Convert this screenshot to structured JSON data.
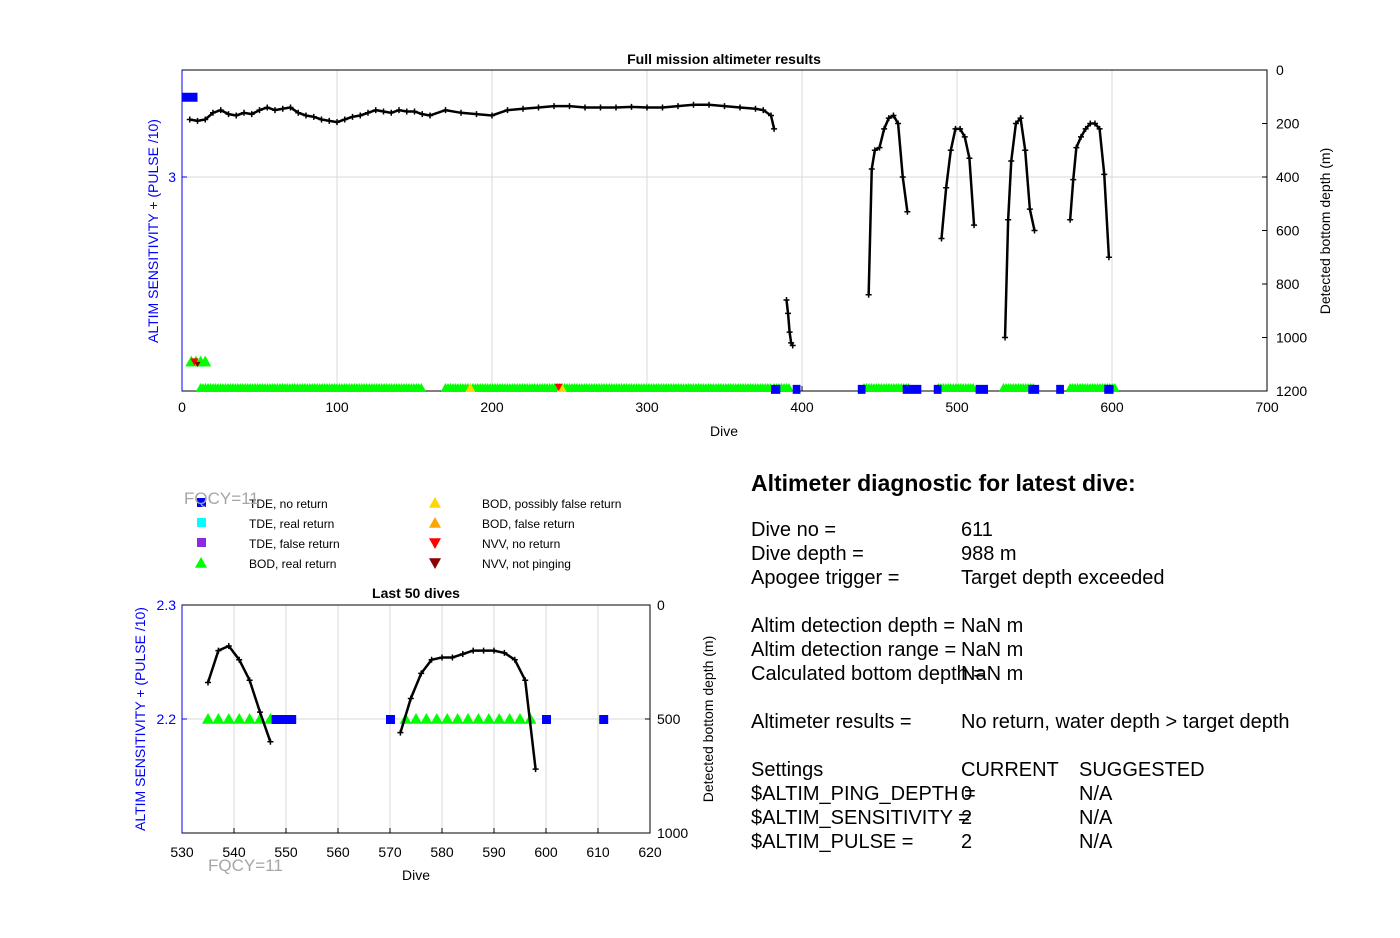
{
  "colors": {
    "axis": "#000000",
    "grid": "#d9d9d9",
    "left_axis": "#0000ff",
    "tde_no_return": "#0000ff",
    "tde_real_return": "#00ffff",
    "tde_false_return": "#8a2be2",
    "bod_real_return": "#00ff00",
    "bod_possibly_false": "#ffd700",
    "bod_false": "#ffa500",
    "nvv_no_return": "#ff0000",
    "nvv_not_pinging": "#8b0000",
    "depth_line": "#000000",
    "fqcy": "#a6a6a6"
  },
  "chart_data": [
    {
      "type": "line",
      "title": "Full mission altimeter results",
      "xlabel": "Dive",
      "ylabel": "ALTIM SENSITIVITY + (PULSE /10)",
      "y2label": "Detected bottom depth (m)",
      "xlim": [
        0,
        700
      ],
      "xticks": [
        "0",
        "100",
        "200",
        "300",
        "400",
        "500",
        "600",
        "700"
      ],
      "yticks_left": [
        "3"
      ],
      "yticks_right": [
        "0",
        "200",
        "400",
        "600",
        "800",
        "1000",
        "1200"
      ],
      "ylim_right": [
        0,
        1200
      ],
      "grid": true,
      "depth_segments": [
        {
          "x": [
            5,
            10,
            15,
            20,
            25,
            30,
            35,
            40,
            45,
            50,
            55,
            60,
            65,
            70,
            75,
            80,
            85,
            90,
            95,
            100,
            105,
            110,
            115,
            120,
            125,
            130,
            135,
            140,
            145,
            150,
            155,
            160,
            170,
            180,
            190,
            200,
            210,
            220,
            230,
            240,
            250,
            260,
            270,
            280,
            290,
            300,
            310,
            320,
            330,
            340,
            350,
            360,
            370,
            375,
            380,
            382
          ],
          "y": [
            185,
            190,
            185,
            160,
            150,
            165,
            170,
            160,
            165,
            150,
            140,
            150,
            145,
            140,
            160,
            170,
            175,
            185,
            190,
            195,
            185,
            175,
            170,
            160,
            150,
            155,
            160,
            150,
            155,
            155,
            165,
            170,
            150,
            160,
            165,
            170,
            150,
            145,
            140,
            135,
            135,
            140,
            140,
            140,
            138,
            140,
            140,
            135,
            130,
            130,
            135,
            140,
            145,
            150,
            170,
            220
          ]
        },
        {
          "x": [
            390,
            391,
            392,
            393,
            394
          ],
          "y": [
            860,
            910,
            980,
            1020,
            1030
          ]
        },
        {
          "x": [
            443,
            445,
            447,
            450,
            453,
            456,
            459,
            462,
            465,
            468
          ],
          "y": [
            840,
            370,
            300,
            290,
            220,
            180,
            170,
            200,
            400,
            530
          ]
        },
        {
          "x": [
            490,
            493,
            496,
            499,
            502,
            505,
            508,
            511
          ],
          "y": [
            630,
            440,
            300,
            220,
            220,
            250,
            330,
            580
          ]
        },
        {
          "x": [
            531,
            533,
            535,
            538,
            541,
            544,
            547,
            550
          ],
          "y": [
            1000,
            560,
            340,
            200,
            180,
            300,
            520,
            600
          ]
        },
        {
          "x": [
            573,
            575,
            577,
            580,
            583,
            586,
            589,
            592,
            595,
            598
          ],
          "y": [
            560,
            410,
            290,
            250,
            220,
            200,
            200,
            220,
            390,
            700
          ]
        }
      ],
      "bod_real_return_ranges": [
        [
          12,
          155
        ],
        [
          170,
          380
        ],
        [
          382,
          393
        ],
        [
          440,
          470
        ],
        [
          488,
          512
        ],
        [
          530,
          550
        ],
        [
          573,
          603
        ]
      ],
      "bod_real_return_extra": [
        [
          6,
          1090
        ],
        [
          9,
          1090
        ],
        [
          12,
          1090
        ],
        [
          15,
          1090
        ]
      ],
      "bod_possibly_false_x": [
        186,
        245
      ],
      "nvv_no_return_points": [
        [
          8,
          1090
        ],
        [
          243,
          1185
        ]
      ],
      "nvv_not_pinging_points": [
        [
          10,
          1100
        ]
      ],
      "tde_no_return_bars": [
        [
          0,
          10,
          100
        ],
        [
          380,
          386,
          1192
        ],
        [
          394,
          399,
          1192
        ],
        [
          436,
          441,
          1192
        ],
        [
          465,
          477,
          1192
        ],
        [
          485,
          490,
          1192
        ],
        [
          512,
          520,
          1192
        ],
        [
          546,
          553,
          1192
        ],
        [
          564,
          569,
          1192
        ],
        [
          595,
          601,
          1192
        ]
      ]
    },
    {
      "type": "line",
      "title": "Last 50 dives",
      "xlabel": "Dive",
      "ylabel": "ALTIM SENSITIVITY + (PULSE /10)",
      "y2label": "Detected bottom depth (m)",
      "xlim": [
        530,
        620
      ],
      "xticks": [
        "530",
        "540",
        "550",
        "560",
        "570",
        "580",
        "590",
        "600",
        "610",
        "620"
      ],
      "yticks_left": [
        "2.3",
        "2.2"
      ],
      "ylim_left": [
        2.1,
        2.3
      ],
      "yticks_right": [
        "0",
        "500",
        "1000"
      ],
      "ylim_right": [
        0,
        1000
      ],
      "grid": true,
      "depth_segments": [
        {
          "x": [
            535,
            537,
            539,
            541,
            543,
            545,
            547
          ],
          "y": [
            340,
            200,
            180,
            240,
            330,
            470,
            600
          ]
        },
        {
          "x": [
            572,
            574,
            576,
            578,
            580,
            582,
            584,
            586,
            588,
            590,
            592,
            594,
            596,
            598
          ],
          "y": [
            560,
            410,
            300,
            240,
            230,
            230,
            215,
            200,
            200,
            200,
            210,
            240,
            330,
            720
          ]
        }
      ],
      "bod_real_return_x": [
        535,
        537,
        539,
        541,
        543,
        545,
        547,
        573,
        575,
        577,
        579,
        581,
        583,
        585,
        587,
        589,
        591,
        593,
        595,
        597
      ],
      "bod_real_return_y": 2.2,
      "tde_no_return_x": [
        548,
        549,
        550,
        551,
        570,
        600,
        611
      ],
      "tde_no_return_y": 2.2
    }
  ],
  "fqcy_label": "FQCY=11",
  "legend": [
    {
      "label": "TDE, no return",
      "color": "#0000ff",
      "marker": "square"
    },
    {
      "label": "TDE, real return",
      "color": "#00ffff",
      "marker": "square"
    },
    {
      "label": "TDE, false return",
      "color": "#8a2be2",
      "marker": "square"
    },
    {
      "label": "BOD, real return",
      "color": "#00ff00",
      "marker": "triangle-up"
    },
    {
      "label": "BOD, possibly false return",
      "color": "#ffd700",
      "marker": "triangle-up"
    },
    {
      "label": "BOD, false return",
      "color": "#ffa500",
      "marker": "triangle-up"
    },
    {
      "label": "NVV, no return",
      "color": "#ff0000",
      "marker": "triangle-down"
    },
    {
      "label": "NVV, not pinging",
      "color": "#8b0000",
      "marker": "triangle-down"
    }
  ],
  "diagnostic": {
    "title": "Altimeter diagnostic for latest dive:",
    "dive_no_label": "Dive no =",
    "dive_no": "611",
    "dive_depth_label": "Dive depth =",
    "dive_depth": "988 m",
    "apogee_label": "Apogee trigger =",
    "apogee": "Target depth exceeded",
    "det_depth_label": "Altim detection depth =",
    "det_depth": "NaN m",
    "det_range_label": "Altim detection range =",
    "det_range": "NaN m",
    "calc_depth_label": "Calculated bottom depth =",
    "calc_depth": "NaN m",
    "results_label": "Altimeter results =",
    "results": "No return, water depth > target depth",
    "settings_label": "Settings",
    "current_label": "CURRENT",
    "suggested_label": "SUGGESTED",
    "ping_depth_label": "$ALTIM_PING_DEPTH =",
    "ping_depth_current": "0",
    "ping_depth_suggested": "N/A",
    "sensitivity_label": "$ALTIM_SENSITIVITY =",
    "sensitivity_current": "2",
    "sensitivity_suggested": "N/A",
    "pulse_label": "$ALTIM_PULSE =",
    "pulse_current": "2",
    "pulse_suggested": "N/A"
  }
}
